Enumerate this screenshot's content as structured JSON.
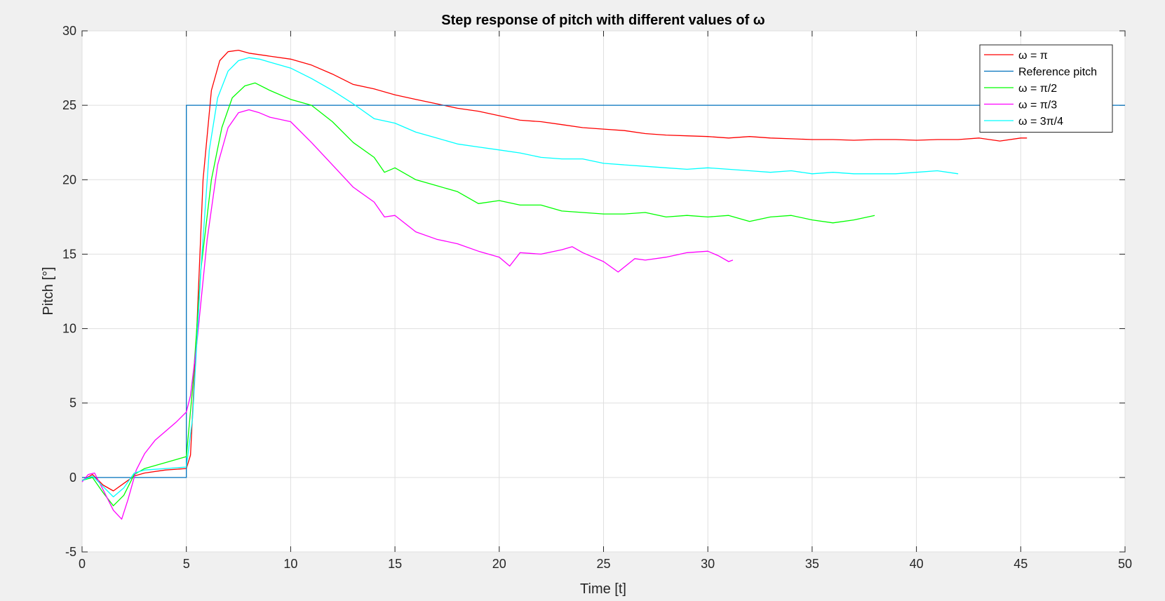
{
  "chart_data": {
    "type": "line",
    "title": "Step response of pitch with different values of ω",
    "xlabel": "Time [t]",
    "ylabel": "Pitch [°]",
    "xlim": [
      0,
      50
    ],
    "ylim": [
      -5,
      30
    ],
    "xticks": [
      "0",
      "5",
      "10",
      "15",
      "20",
      "25",
      "30",
      "35",
      "40",
      "45",
      "50"
    ],
    "yticks": [
      "-5",
      "0",
      "5",
      "10",
      "15",
      "20",
      "25",
      "30"
    ],
    "grid": true,
    "legend_position": "top-right",
    "series": [
      {
        "name": "ω = π",
        "color": "#ff0000",
        "x": [
          0,
          0.5,
          1,
          1.5,
          2,
          2.5,
          3,
          4,
          5,
          5.2,
          5.5,
          5.8,
          6.2,
          6.6,
          7,
          7.5,
          8,
          9,
          10,
          11,
          12,
          13,
          14,
          15,
          16,
          17,
          18,
          19,
          20,
          21,
          22,
          23,
          24,
          25,
          26,
          27,
          28,
          29,
          30,
          31,
          32,
          33,
          34,
          35,
          36,
          37,
          38,
          39,
          40,
          41,
          42,
          43,
          44,
          45,
          45.3
        ],
        "y": [
          -0.2,
          0.2,
          -0.5,
          -0.9,
          -0.4,
          0.1,
          0.3,
          0.5,
          0.6,
          1.5,
          10,
          20,
          26,
          28,
          28.6,
          28.7,
          28.5,
          28.3,
          28.1,
          27.7,
          27.1,
          26.4,
          26.1,
          25.7,
          25.4,
          25.1,
          24.8,
          24.6,
          24.3,
          24.0,
          23.9,
          23.7,
          23.5,
          23.4,
          23.3,
          23.1,
          23.0,
          22.95,
          22.9,
          22.8,
          22.9,
          22.8,
          22.75,
          22.7,
          22.7,
          22.65,
          22.7,
          22.7,
          22.65,
          22.7,
          22.7,
          22.8,
          22.6,
          22.8,
          22.8
        ]
      },
      {
        "name": "Reference pitch",
        "color": "#0072bd",
        "x": [
          0,
          5,
          5,
          50
        ],
        "y": [
          0,
          0,
          25,
          25
        ]
      },
      {
        "name": "ω = π/2",
        "color": "#00ff00",
        "x": [
          0,
          0.5,
          1,
          1.5,
          2,
          2.5,
          3,
          4,
          5,
          5.3,
          5.7,
          6.2,
          6.7,
          7.2,
          7.8,
          8.3,
          9,
          10,
          11,
          12,
          13,
          14,
          14.5,
          15,
          16,
          17,
          18,
          19,
          20,
          21,
          22,
          23,
          24,
          25,
          26,
          27,
          28,
          29,
          30,
          31,
          32,
          33,
          34,
          35,
          36,
          37,
          38
        ],
        "y": [
          -0.2,
          0,
          -1,
          -1.9,
          -1.2,
          0.2,
          0.6,
          1.0,
          1.4,
          6,
          14,
          20,
          23.5,
          25.5,
          26.3,
          26.5,
          26.0,
          25.4,
          25.0,
          23.9,
          22.5,
          21.5,
          20.5,
          20.8,
          20.0,
          19.6,
          19.2,
          18.4,
          18.6,
          18.3,
          18.3,
          17.9,
          17.8,
          17.7,
          17.7,
          17.8,
          17.5,
          17.6,
          17.5,
          17.6,
          17.2,
          17.5,
          17.6,
          17.3,
          17.1,
          17.3,
          17.6
        ]
      },
      {
        "name": "ω = π/3",
        "color": "#ff00ff",
        "x": [
          0,
          0.3,
          0.6,
          1,
          1.5,
          1.9,
          2.2,
          2.6,
          3,
          3.5,
          4,
          4.5,
          5,
          5.2,
          5.5,
          6,
          6.5,
          7,
          7.5,
          8,
          8.5,
          9,
          10,
          11,
          12,
          13,
          14,
          14.5,
          15,
          16,
          17,
          18,
          19,
          20,
          20.5,
          21,
          22,
          23,
          23.5,
          24,
          25,
          25.7,
          26.5,
          27,
          28,
          29,
          30,
          30.5,
          31,
          31.2
        ],
        "y": [
          -0.3,
          0.2,
          0.3,
          -0.8,
          -2.2,
          -2.8,
          -1.5,
          0.5,
          1.6,
          2.5,
          3.1,
          3.7,
          4.4,
          5.5,
          9,
          16,
          21,
          23.5,
          24.5,
          24.7,
          24.5,
          24.2,
          23.9,
          22.5,
          21.0,
          19.5,
          18.5,
          17.5,
          17.6,
          16.5,
          16.0,
          15.7,
          15.2,
          14.8,
          14.2,
          15.1,
          15.0,
          15.3,
          15.5,
          15.1,
          14.5,
          13.8,
          14.7,
          14.6,
          14.8,
          15.1,
          15.2,
          14.9,
          14.5,
          14.6
        ]
      },
      {
        "name": "ω = 3π/4",
        "color": "#00ffff",
        "x": [
          0,
          0.5,
          1,
          1.5,
          2,
          2.5,
          3,
          4,
          5,
          5.3,
          5.7,
          6.1,
          6.5,
          7,
          7.5,
          8,
          8.5,
          9,
          10,
          11,
          12,
          13,
          14,
          15,
          16,
          17,
          18,
          19,
          20,
          21,
          22,
          23,
          24,
          25,
          26,
          27,
          28,
          29,
          30,
          31,
          32,
          33,
          34,
          35,
          36,
          37,
          38,
          39,
          40,
          41,
          42
        ],
        "y": [
          -0.2,
          0.1,
          -0.6,
          -1.3,
          -0.7,
          0.3,
          0.5,
          0.6,
          0.7,
          4,
          14,
          22,
          25.5,
          27.3,
          28.0,
          28.2,
          28.1,
          27.9,
          27.5,
          26.8,
          26.0,
          25.1,
          24.1,
          23.8,
          23.2,
          22.8,
          22.4,
          22.2,
          22.0,
          21.8,
          21.5,
          21.4,
          21.4,
          21.1,
          21.0,
          20.9,
          20.8,
          20.7,
          20.8,
          20.7,
          20.6,
          20.5,
          20.6,
          20.4,
          20.5,
          20.4,
          20.4,
          20.4,
          20.5,
          20.6,
          20.4
        ]
      }
    ]
  }
}
